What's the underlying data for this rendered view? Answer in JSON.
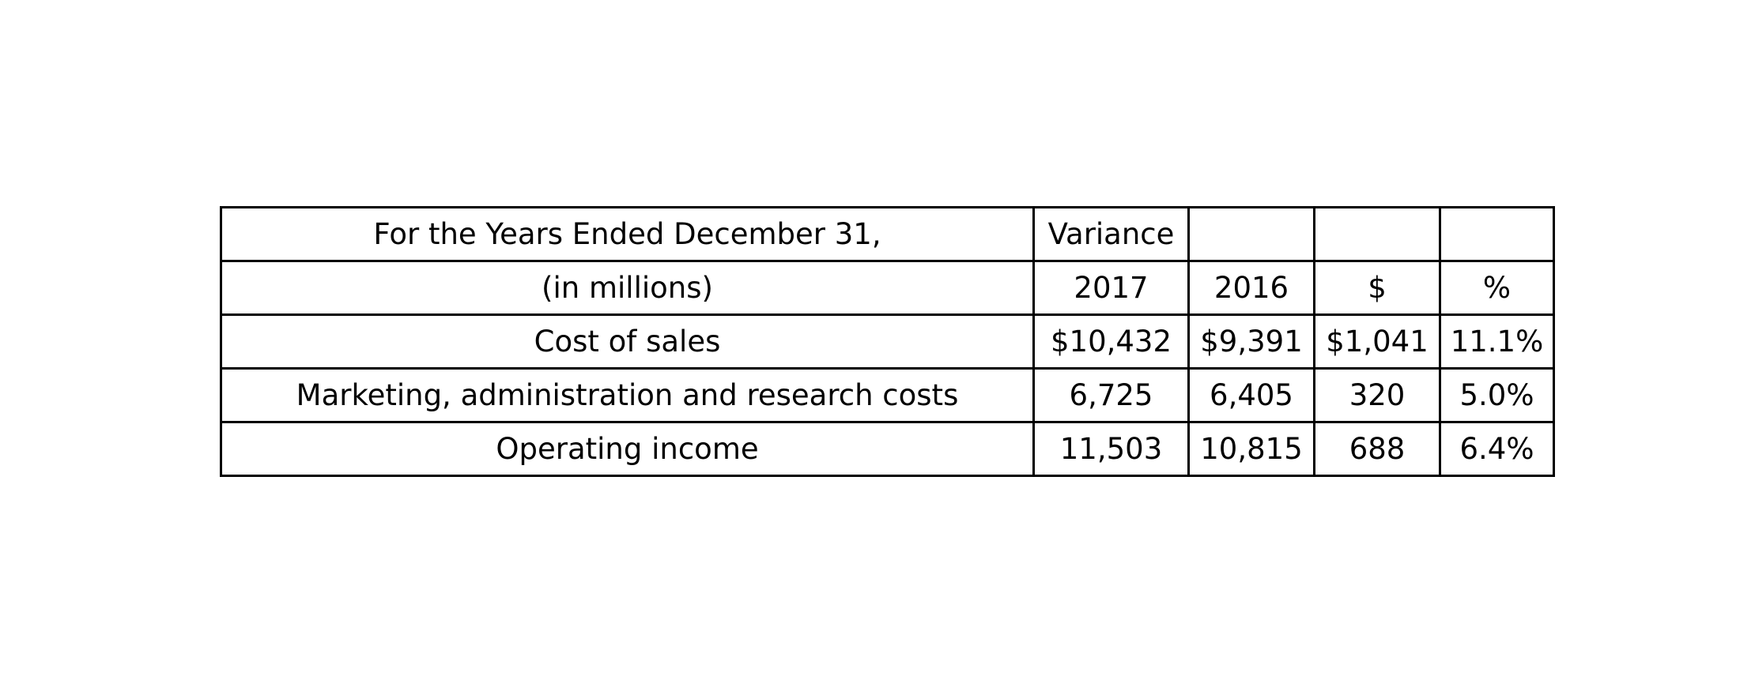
{
  "chart_data": {
    "type": "table",
    "header_rows": [
      [
        "For the Years Ended December 31,",
        "Variance",
        "",
        "",
        ""
      ],
      [
        "(in millions)",
        "2017",
        "2016",
        "$",
        "%"
      ]
    ],
    "rows": [
      [
        "Cost of sales",
        "$10,432",
        "$9,391",
        "$1,041",
        "11.1%"
      ],
      [
        "Marketing, administration and research costs",
        "6,725",
        "6,405",
        "320",
        "5.0%"
      ],
      [
        "Operating income",
        "11,503",
        "10,815",
        "688",
        "6.4%"
      ]
    ]
  }
}
